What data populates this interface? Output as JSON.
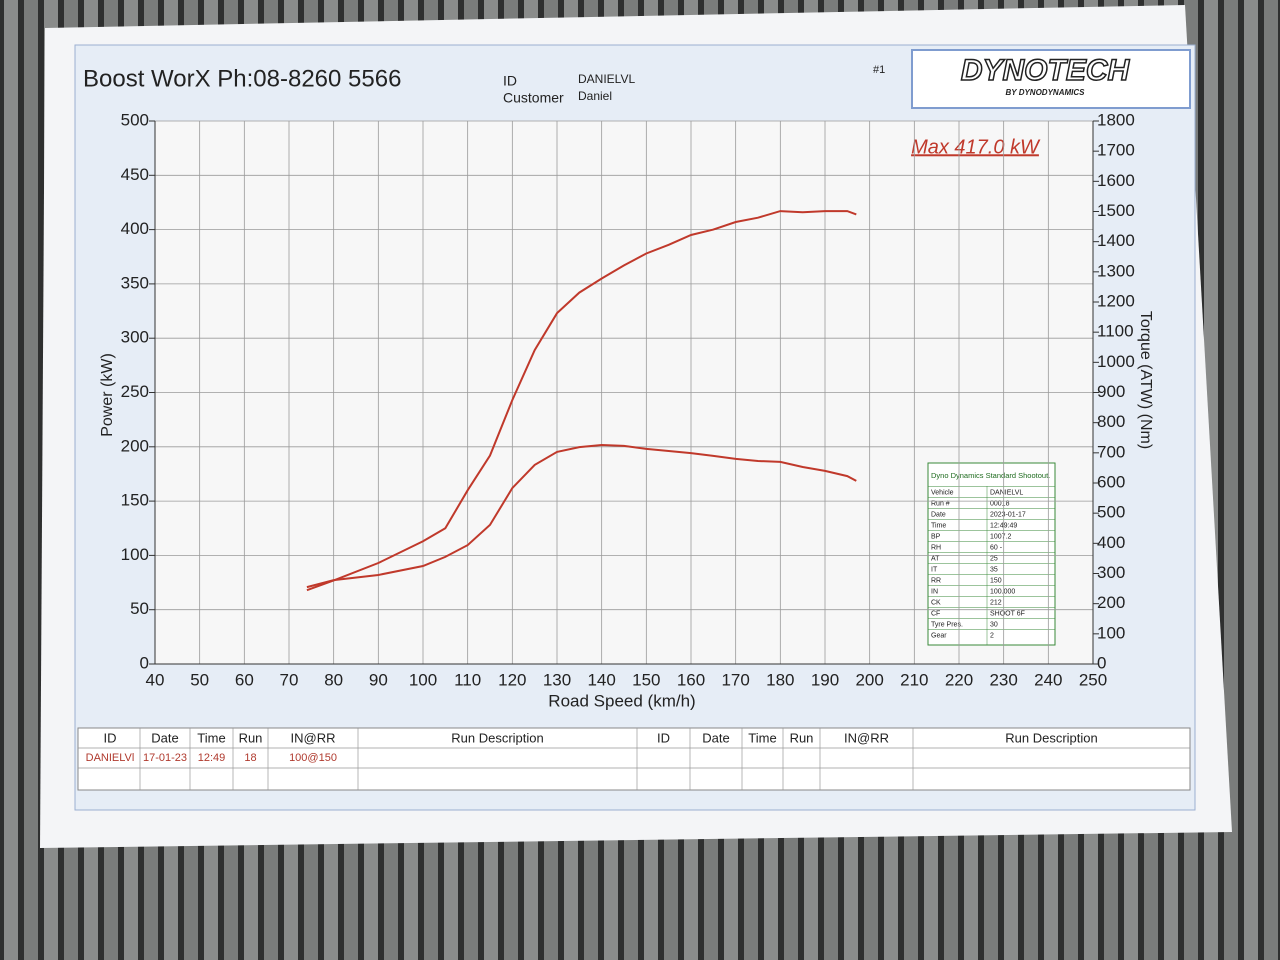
{
  "header": {
    "title": "Boost WorX Ph:08-8260 5566",
    "id_label": "ID",
    "id": "DANIELVL",
    "customer_label": "Customer",
    "customer": "Daniel",
    "run_no": "#1",
    "logo": "DYNOTECH",
    "logo_sub": "BY DYNODYNAMICS"
  },
  "chart_data": {
    "type": "line",
    "annotation": "Max 417.0 kW",
    "x_label": "Road Speed (km/h)",
    "y_label": "Power (kW)",
    "y2_label": "Torque (ATW) (Nm)",
    "x": [
      74,
      80,
      90,
      100,
      105,
      110,
      115,
      120,
      125,
      130,
      135,
      140,
      145,
      150,
      155,
      160,
      165,
      170,
      175,
      180,
      185,
      190,
      195,
      197
    ],
    "series": [
      {
        "color": "#c0392b",
        "values": [
          68,
          77,
          93,
          113,
          125,
          160,
          192,
          243,
          289,
          323,
          342,
          355,
          367,
          378,
          386,
          395,
          400,
          407,
          411,
          417,
          416,
          417,
          417,
          414
        ]
      },
      {
        "color": "#c0392b",
        "axis": "y2",
        "values": [
          255,
          278,
          295,
          325,
          355,
          394,
          461,
          583,
          660,
          703,
          719,
          726,
          723,
          713,
          706,
          699,
          690,
          680,
          673,
          670,
          653,
          640,
          623,
          607
        ]
      }
    ],
    "xlim": [
      40,
      250
    ],
    "xticks": [
      40,
      50,
      60,
      70,
      80,
      90,
      100,
      110,
      120,
      130,
      140,
      150,
      160,
      170,
      180,
      190,
      200,
      210,
      220,
      230,
      240,
      250
    ],
    "ylim": [
      0,
      500
    ],
    "yticks": [
      0,
      50,
      100,
      150,
      200,
      250,
      300,
      350,
      400,
      450,
      500
    ],
    "y2lim": [
      0,
      1800
    ],
    "y2ticks": [
      0,
      100,
      200,
      300,
      400,
      500,
      600,
      700,
      800,
      900,
      1000,
      1100,
      1200,
      1300,
      1400,
      1500,
      1600,
      1700,
      1800
    ],
    "grid": true
  },
  "shootout": {
    "title": "Dyno Dynamics Standard Shootout.",
    "rows": [
      [
        "Vehicle",
        "DANIELVL"
      ],
      [
        "Run #",
        "00018"
      ],
      [
        "Date",
        "2023-01-17"
      ],
      [
        "Time",
        "12:49:49"
      ],
      [
        "BP",
        "1007.2"
      ],
      [
        "RH",
        "60  -"
      ],
      [
        "AT",
        "25"
      ],
      [
        "IT",
        "35"
      ],
      [
        "RR",
        "150"
      ],
      [
        "IN",
        "100.000"
      ],
      [
        "CK",
        "212"
      ],
      [
        "CF",
        "SHOOT  6F"
      ],
      [
        "Tyre Pres.",
        "30"
      ],
      [
        "Gear",
        "2"
      ]
    ]
  },
  "table": {
    "headers": [
      "ID",
      "Date",
      "Time",
      "Run",
      "IN@RR",
      "Run Description",
      "ID",
      "Date",
      "Time",
      "Run",
      "IN@RR",
      "Run Description"
    ],
    "rows": [
      [
        "DANIELVl",
        "17-01-23",
        "12:49",
        "18",
        "100@150"
      ]
    ]
  }
}
